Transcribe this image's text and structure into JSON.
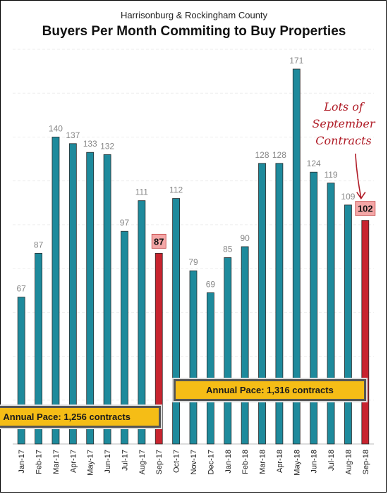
{
  "header": {
    "subtitle": "Harrisonburg & Rockingham County",
    "title": "Buyers Per Month Commiting to Buy Properties"
  },
  "annotations": {
    "pace_2017": "Annual Pace: 1,256 contracts",
    "pace_2018": "Annual Pace: 1,316 contracts",
    "note_lines": [
      "Lots of",
      "September",
      "Contracts"
    ]
  },
  "colors": {
    "bar": "#1e8a9c",
    "highlight": "#c8242f",
    "highlight_label_bg": "#f4a7a7",
    "label": "#888888",
    "pace_bg": "#f5bd16",
    "note": "#b01c27"
  },
  "chart_data": {
    "type": "bar",
    "title": "Buyers Per Month Commiting to Buy Properties",
    "subtitle": "Harrisonburg & Rockingham County",
    "categories": [
      "Jan-17",
      "Feb-17",
      "Mar-17",
      "Apr-17",
      "May-17",
      "Jun-17",
      "Jul-17",
      "Aug-17",
      "Sep-17",
      "Oct-17",
      "Nov-17",
      "Dec-17",
      "Jan-18",
      "Feb-18",
      "Mar-18",
      "Apr-18",
      "May-18",
      "Jun-18",
      "Jul-18",
      "Aug-18",
      "Sep-18"
    ],
    "values": [
      67,
      87,
      140,
      137,
      133,
      132,
      97,
      111,
      87,
      112,
      79,
      69,
      85,
      90,
      128,
      128,
      171,
      124,
      119,
      109,
      102
    ],
    "highlighted": [
      "Sep-17",
      "Sep-18"
    ],
    "ylim": [
      0,
      180
    ],
    "grid": true,
    "legend": "none"
  }
}
